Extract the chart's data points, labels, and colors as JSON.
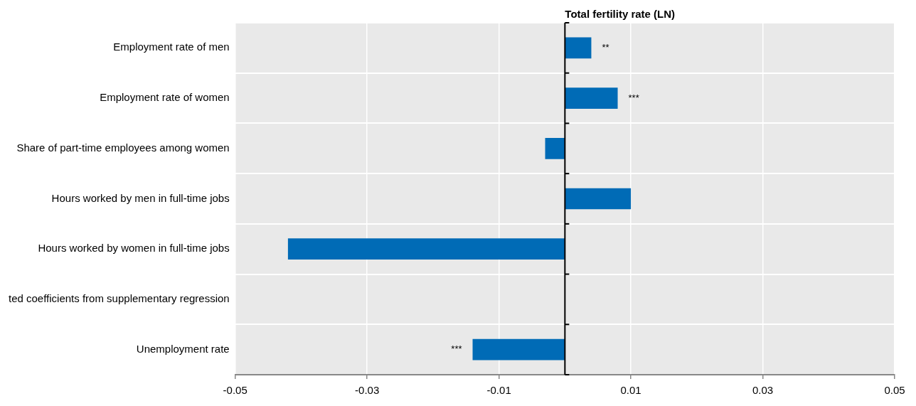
{
  "chart_data": {
    "type": "bar",
    "orientation": "horizontal",
    "title": "Total fertility rate (LN)",
    "categories": [
      "Employment rate of men",
      "Employment rate of women",
      "Share of part-time employees among women",
      "Hours worked by men in full-time jobs",
      "Hours worked by women in full-time jobs",
      "ted coefficients from supplementary regression",
      "Unemployment rate"
    ],
    "values": [
      0.004,
      0.008,
      -0.003,
      0.01,
      -0.042,
      null,
      -0.014
    ],
    "color": "#006bb6",
    "xlim": [
      -0.05,
      0.05
    ],
    "xticks": [
      -0.05,
      -0.03,
      -0.01,
      0.01,
      0.03,
      0.05
    ],
    "annotations": [
      {
        "text": "**",
        "x": 0.004,
        "y": "Employment rate of men"
      },
      {
        "text": "***",
        "x": 0.008,
        "y": "Employment rate of women"
      },
      {
        "text": "***",
        "x": -0.014,
        "y": "Unemployment rate"
      }
    ],
    "grid": true,
    "legend": false
  }
}
